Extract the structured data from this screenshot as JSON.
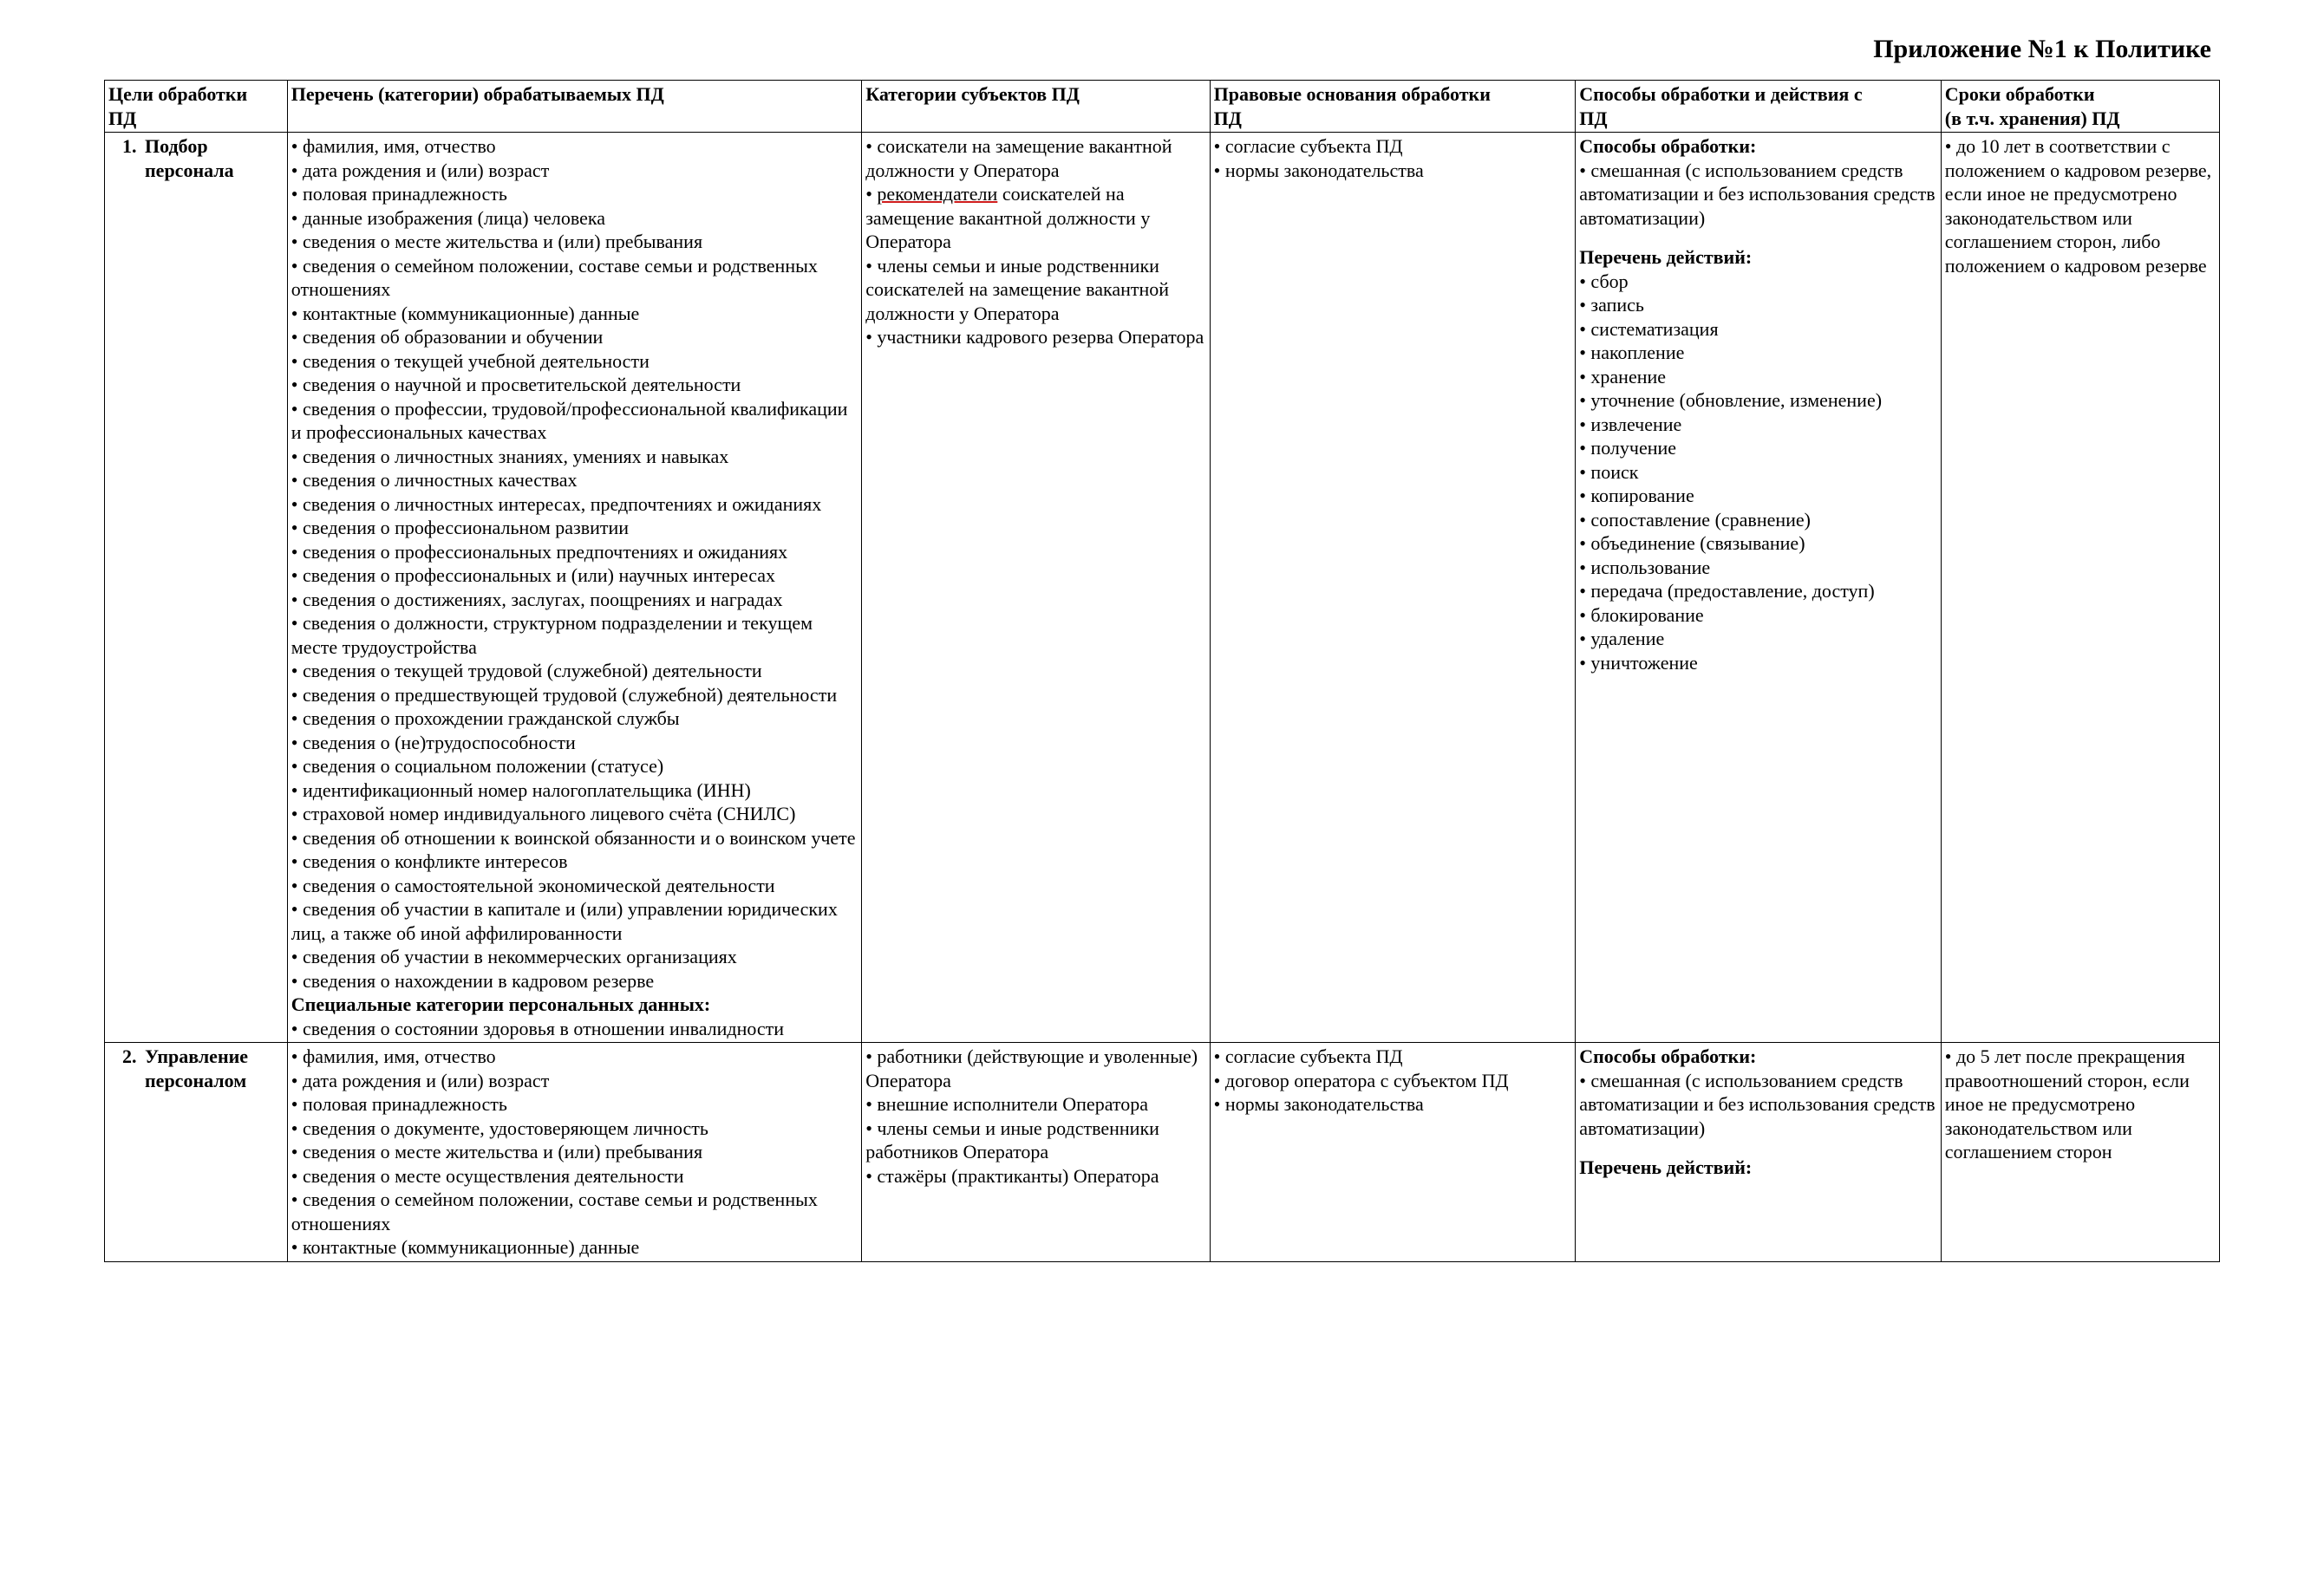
{
  "title": "Приложение №1 к Политике",
  "columns": {
    "purpose_l1": "Цели обработки",
    "purpose_l2": "ПД",
    "categories": "Перечень (категории) обрабатываемых ПД",
    "subjects": "Категории субъектов ПД",
    "legal_l1": "Правовые основания обработки",
    "legal_l2": "ПД",
    "methods_l1": "Способы обработки и действия с",
    "methods_l2": "ПД",
    "terms_l1": "Сроки обработки",
    "terms_l2": "(в т.ч. хранения) ПД"
  },
  "rows": [
    {
      "num": "1.",
      "purpose": "Подбор персонала",
      "categories": [
        "фамилия, имя, отчество",
        "дата рождения и (или) возраст",
        "половая принадлежность",
        "данные изображения (лица) человека",
        "сведения о месте жительства и (или) пребывания",
        "сведения о семейном положении, составе семьи и родственных отношениях",
        "контактные (коммуникационные) данные",
        "сведения об образовании и обучении",
        "сведения о текущей учебной деятельности",
        "сведения о научной и просветительской деятельности",
        "сведения о профессии, трудовой/профессиональной квалификации и профессиональных качествах",
        "сведения о личностных знаниях, умениях и навыках",
        "сведения о личностных качествах",
        "сведения о личностных интересах, предпочтениях и ожиданиях",
        "сведения о профессиональном развитии",
        "сведения о профессиональных предпочтениях и ожиданиях",
        "сведения о профессиональных и (или) научных интересах",
        "сведения о достижениях, заслугах, поощрениях и наградах",
        "сведения о должности, структурном подразделении и текущем месте трудоустройства",
        "сведения о текущей трудовой (служебной) деятельности",
        "сведения о предшествующей трудовой (служебной) деятельности",
        "сведения о прохождении гражданской службы",
        "сведения о (не)трудоспособности",
        "сведения о социальном положении (статусе)",
        "идентификационный номер налогоплательщика (ИНН)",
        "страховой номер индивидуального лицевого счёта (СНИЛС)",
        "сведения об отношении к воинской обязанности и о воинском учете",
        "сведения о конфликте интересов",
        "сведения о самостоятельной экономической деятельности",
        "сведения об участии в капитале и (или) управлении юридических лиц, а также об иной аффилированности",
        "сведения об участии в некоммерческих организациях",
        "сведения о нахождении в кадровом резерве"
      ],
      "special_header": "Специальные категории персональных данных:",
      "special": [
        "сведения о состоянии здоровья в отношении инвалидности"
      ],
      "subjects_pre": "соискатели на замещение вакантной должности у Оператора",
      "subjects_rekom_word": "рекомендатели",
      "subjects_rekom_tail": " соискателей на замещение вакантной должности у Оператора",
      "subjects_rest": [
        "члены семьи и иные родственники соискателей на замещение вакантной должности у Оператора",
        "участники кадрового резерва Оператора"
      ],
      "legal": [
        "согласие субъекта ПД",
        "нормы законодательства"
      ],
      "methods_label": "Способы обработки:",
      "methods_items": [
        "смешанная (с использованием средств автоматизации и без использования средств автоматизации)"
      ],
      "actions_label": "Перечень действий:",
      "actions_items": [
        "сбор",
        "запись",
        "систематизация",
        "накопление",
        "хранение",
        "уточнение (обновление, изменение)",
        "извлечение",
        "получение",
        "поиск",
        "копирование",
        "сопоставление (сравнение)",
        "объединение (связывание)",
        "использование",
        "передача (предоставление, доступ)",
        "блокирование",
        "удаление",
        "уничтожение"
      ],
      "terms": "до 10 лет в соответствии с положением о кадровом резерве, если иное не предусмотрено законодательством или соглашением сторон, либо положением о кадровом резерве"
    },
    {
      "num": "2.",
      "purpose": "Управление персоналом",
      "categories": [
        "фамилия, имя, отчество",
        "дата рождения и (или) возраст",
        "половая принадлежность",
        "сведения о документе, удостоверяющем личность",
        "сведения о месте жительства и (или) пребывания",
        "сведения о месте осуществления деятельности",
        "сведения о семейном положении, составе семьи и родственных отношениях",
        "контактные (коммуникационные) данные"
      ],
      "subjects": [
        "работники (действующие и уволенные) Оператора",
        "внешние исполнители Оператора",
        "члены семьи и иные родственники работников Оператора",
        "стажёры (практиканты) Оператора"
      ],
      "legal": [
        "согласие субъекта ПД",
        "договор оператора с субъектом ПД",
        "нормы законодательства"
      ],
      "methods_label": "Способы обработки:",
      "methods_items": [
        "смешанная (с использованием средств автоматизации и без использования средств автоматизации)"
      ],
      "actions_label": "Перечень действий:",
      "terms": "до 5 лет после прекращения правоотношений сторон, если иное не предусмотрено законодательством или соглашением сторон"
    }
  ]
}
